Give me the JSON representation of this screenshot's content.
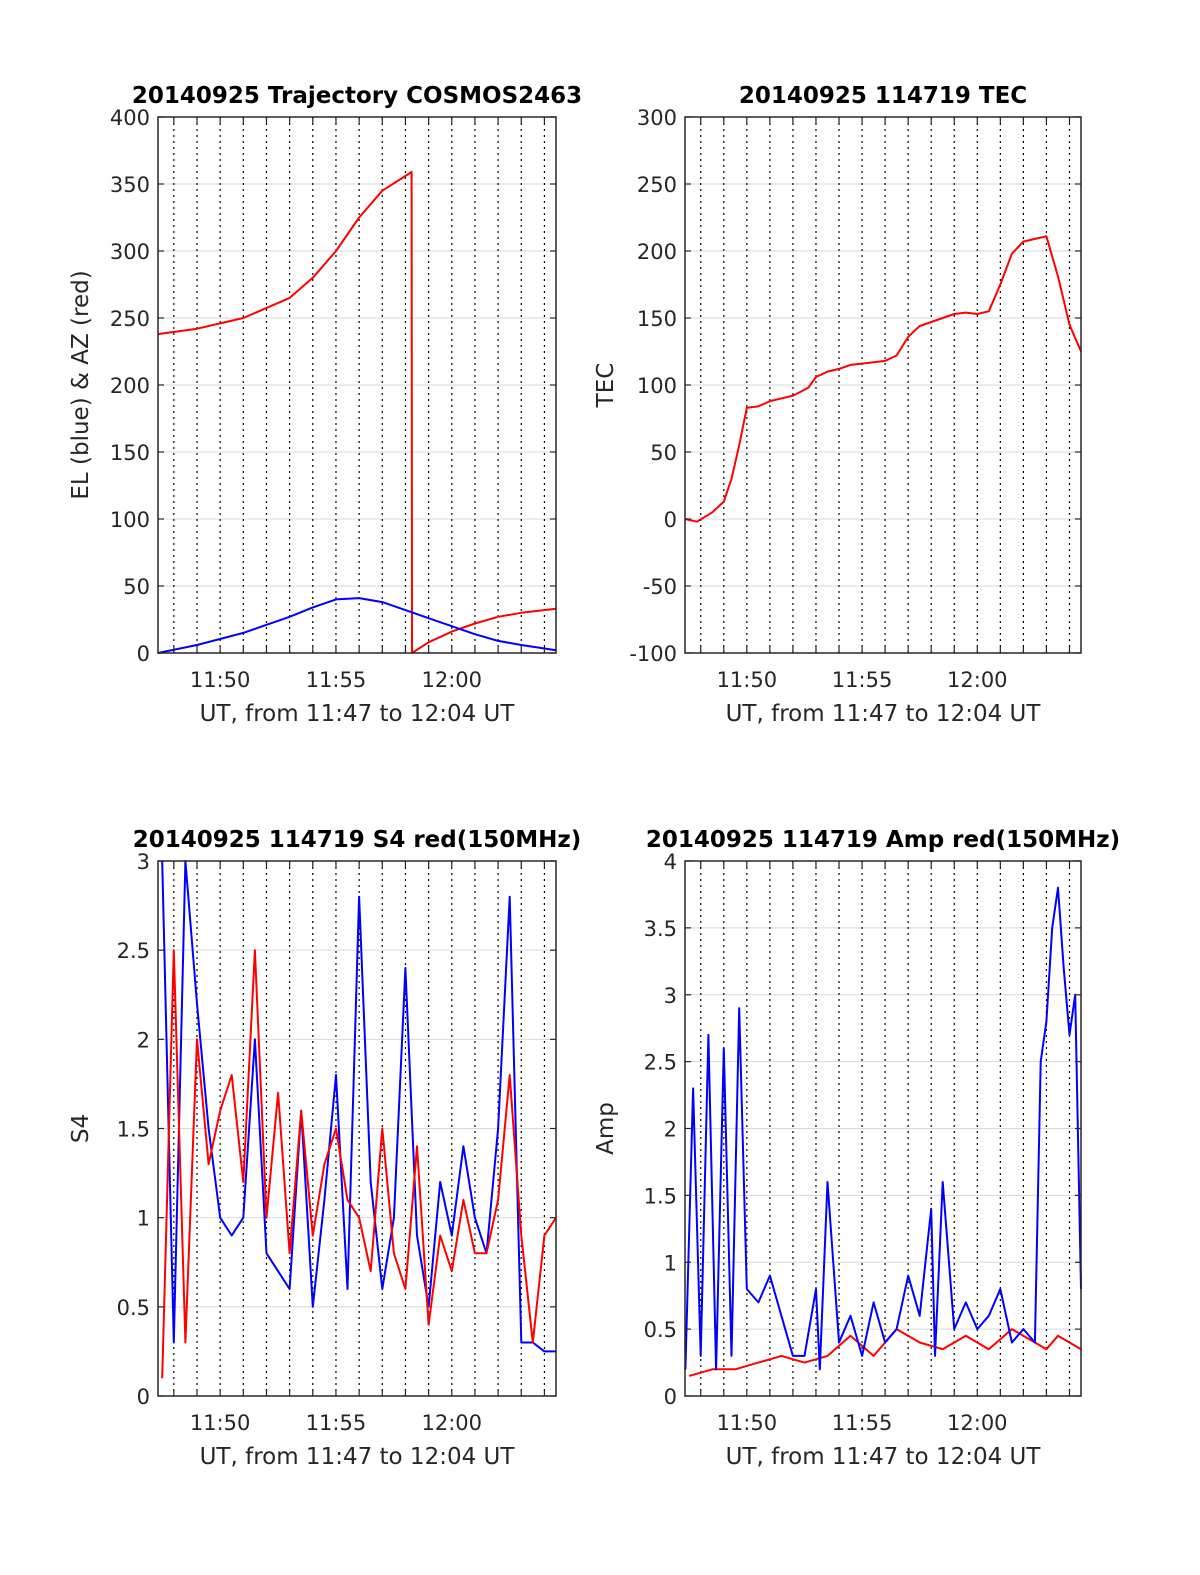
{
  "colors": {
    "red": "#ff0000",
    "blue": "#0000ff",
    "grid": "#d9d9d9",
    "axis": "#262626"
  },
  "chart_data": [
    {
      "id": "trajectory",
      "type": "line",
      "title": "20140925 Trajectory COSMOS2463",
      "xlabel": "UT, from 11:47 to 12:04 UT",
      "ylabel": "EL (blue) & AZ (red)",
      "xlim": [
        "11:47:19",
        "12:04:30"
      ],
      "ylim": [
        0,
        400
      ],
      "yticks": [
        0,
        50,
        100,
        150,
        200,
        250,
        300,
        350,
        400
      ],
      "xticks": [
        "11:50",
        "11:55",
        "12:00"
      ],
      "grid": "on",
      "series": [
        {
          "color": "red",
          "x": [
            "11:47:19",
            "11:49:00",
            "11:51:00",
            "11:53:00",
            "11:54:00",
            "11:55:00",
            "11:56:00",
            "11:57:00",
            "11:58:00",
            "11:58:16",
            "11:58:17",
            "11:59:00",
            "12:00:00",
            "12:01:00",
            "12:02:00",
            "12:03:00",
            "12:04:30"
          ],
          "y": [
            238,
            242,
            250,
            265,
            280,
            300,
            325,
            345,
            356,
            359,
            0,
            8,
            16,
            22,
            27,
            30,
            33
          ]
        },
        {
          "color": "blue",
          "x": [
            "11:47:19",
            "11:49:00",
            "11:51:00",
            "11:53:00",
            "11:54:00",
            "11:55:00",
            "11:56:00",
            "11:57:00",
            "11:58:00",
            "11:59:00",
            "12:00:00",
            "12:01:00",
            "12:02:00",
            "12:03:00",
            "12:04:30"
          ],
          "y": [
            0,
            6,
            15,
            27,
            34,
            40,
            41,
            38,
            32,
            26,
            20,
            14,
            9,
            6,
            2
          ]
        }
      ]
    },
    {
      "id": "tec",
      "type": "line",
      "title": "20140925 114719 TEC",
      "xlabel": "UT, from 11:47 to 12:04 UT",
      "ylabel": "TEC",
      "xlim": [
        "11:47:19",
        "12:04:30"
      ],
      "ylim": [
        -100,
        300
      ],
      "yticks": [
        -100,
        -50,
        0,
        50,
        100,
        150,
        200,
        250,
        300
      ],
      "xticks": [
        "11:50",
        "11:55",
        "12:00"
      ],
      "grid": "on",
      "series": [
        {
          "color": "red",
          "x": [
            "11:47:19",
            "11:47:50",
            "11:48:30",
            "11:49:00",
            "11:49:20",
            "11:49:40",
            "11:50:00",
            "11:50:30",
            "11:51:00",
            "11:52:00",
            "11:52:40",
            "11:53:00",
            "11:53:30",
            "11:54:00",
            "11:54:30",
            "11:55:00",
            "11:55:30",
            "11:56:00",
            "11:56:30",
            "11:57:00",
            "11:57:30",
            "11:58:00",
            "11:59:00",
            "11:59:30",
            "12:00:00",
            "12:00:30",
            "12:01:00",
            "12:01:30",
            "12:02:00",
            "12:02:30",
            "12:03:00",
            "12:03:30",
            "12:04:00",
            "12:04:30"
          ],
          "y": [
            0,
            -2,
            5,
            13,
            30,
            55,
            83,
            84,
            88,
            92,
            98,
            106,
            110,
            112,
            115,
            116,
            117,
            118,
            122,
            136,
            144,
            147,
            153,
            154,
            153,
            155,
            175,
            198,
            207,
            209,
            211,
            181,
            145,
            125
          ]
        }
      ]
    },
    {
      "id": "s4",
      "type": "line",
      "title": "20140925 114719 S4 red(150MHz)",
      "xlabel": "UT, from 11:47 to 12:04 UT",
      "ylabel": "S4",
      "xlim": [
        "11:47:19",
        "12:04:30"
      ],
      "ylim": [
        0,
        3
      ],
      "yticks": [
        0,
        0.5,
        1,
        1.5,
        2,
        2.5,
        3
      ],
      "xticks": [
        "11:50",
        "11:55",
        "12:00"
      ],
      "grid": "on",
      "series": [
        {
          "color": "blue",
          "x": [
            "11:47:30",
            "11:48:00",
            "11:48:30",
            "11:49:00",
            "11:49:30",
            "11:50:00",
            "11:50:30",
            "11:51:00",
            "11:51:30",
            "11:52:00",
            "11:52:30",
            "11:53:00",
            "11:53:30",
            "11:54:00",
            "11:54:30",
            "11:55:00",
            "11:55:30",
            "11:56:00",
            "11:56:30",
            "11:57:00",
            "11:57:30",
            "11:58:00",
            "11:58:30",
            "11:59:00",
            "11:59:30",
            "12:00:00",
            "12:00:30",
            "12:01:00",
            "12:01:30",
            "12:02:00",
            "12:02:30",
            "12:03:00",
            "12:03:30",
            "12:04:00",
            "12:04:30"
          ],
          "y": [
            3,
            0.3,
            3,
            2.2,
            1.5,
            1.0,
            0.9,
            1.0,
            2.0,
            0.8,
            0.7,
            0.6,
            1.6,
            0.5,
            1.1,
            1.8,
            0.6,
            2.8,
            1.2,
            0.6,
            1.0,
            2.4,
            0.9,
            0.5,
            1.2,
            0.9,
            1.4,
            1.0,
            0.8,
            1.5,
            2.8,
            0.3,
            0.3,
            0.25,
            0.25
          ]
        },
        {
          "color": "red",
          "x": [
            "11:47:30",
            "11:48:00",
            "11:48:30",
            "11:49:00",
            "11:49:30",
            "11:50:00",
            "11:50:30",
            "11:51:00",
            "11:51:30",
            "11:52:00",
            "11:52:30",
            "11:53:00",
            "11:53:30",
            "11:54:00",
            "11:54:30",
            "11:55:00",
            "11:55:30",
            "11:56:00",
            "11:56:30",
            "11:57:00",
            "11:57:30",
            "11:58:00",
            "11:58:30",
            "11:59:00",
            "11:59:30",
            "12:00:00",
            "12:00:30",
            "12:01:00",
            "12:01:30",
            "12:02:00",
            "12:02:30",
            "12:03:00",
            "12:03:30",
            "12:04:00",
            "12:04:30"
          ],
          "y": [
            0.1,
            2.5,
            0.3,
            2.0,
            1.3,
            1.6,
            1.8,
            1.2,
            2.5,
            1.0,
            1.7,
            0.8,
            1.6,
            0.9,
            1.3,
            1.5,
            1.1,
            1.0,
            0.7,
            1.5,
            0.8,
            0.6,
            1.4,
            0.4,
            0.9,
            0.7,
            1.1,
            0.8,
            0.8,
            1.1,
            1.8,
            0.9,
            0.3,
            0.9,
            1.0
          ]
        }
      ]
    },
    {
      "id": "amp",
      "type": "line",
      "title": "20140925 114719 Amp red(150MHz)",
      "xlabel": "UT, from 11:47 to 12:04 UT",
      "ylabel": "Amp",
      "xlim": [
        "11:47:19",
        "12:04:30"
      ],
      "ylim": [
        0,
        4
      ],
      "yticks": [
        0,
        0.5,
        1,
        1.5,
        2,
        2.5,
        3,
        3.5,
        4
      ],
      "xticks": [
        "11:50",
        "11:55",
        "12:00"
      ],
      "grid": "on",
      "series": [
        {
          "color": "red",
          "x": [
            "11:47:30",
            "11:48:30",
            "11:49:30",
            "11:50:30",
            "11:51:30",
            "11:52:30",
            "11:53:30",
            "11:54:30",
            "11:55:30",
            "11:56:30",
            "11:57:30",
            "11:58:30",
            "11:59:30",
            "12:00:30",
            "12:01:30",
            "12:02:30",
            "12:03:00",
            "12:03:30",
            "12:04:00",
            "12:04:30"
          ],
          "y": [
            0.15,
            0.2,
            0.2,
            0.25,
            0.3,
            0.25,
            0.3,
            0.45,
            0.3,
            0.5,
            0.4,
            0.35,
            0.45,
            0.35,
            0.5,
            0.4,
            0.35,
            0.45,
            0.4,
            0.35
          ]
        },
        {
          "color": "blue",
          "x": [
            "11:47:20",
            "11:47:40",
            "11:48:00",
            "11:48:20",
            "11:48:40",
            "11:49:00",
            "11:49:20",
            "11:49:40",
            "11:50:00",
            "11:50:30",
            "11:51:00",
            "11:51:30",
            "11:52:00",
            "11:52:30",
            "11:53:00",
            "11:53:10",
            "11:53:30",
            "11:54:00",
            "11:54:30",
            "11:55:00",
            "11:55:30",
            "11:56:00",
            "11:56:30",
            "11:57:00",
            "11:57:30",
            "11:58:00",
            "11:58:10",
            "11:58:30",
            "11:59:00",
            "11:59:30",
            "12:00:00",
            "12:00:30",
            "12:01:00",
            "12:01:30",
            "12:02:00",
            "12:02:30",
            "12:02:45",
            "12:03:00",
            "12:03:15",
            "12:03:30",
            "12:03:45",
            "12:04:00",
            "12:04:15",
            "12:04:30"
          ],
          "y": [
            0.2,
            2.3,
            0.3,
            2.7,
            0.2,
            2.6,
            0.3,
            2.9,
            0.8,
            0.7,
            0.9,
            0.6,
            0.3,
            0.3,
            0.8,
            0.2,
            1.6,
            0.4,
            0.6,
            0.3,
            0.7,
            0.4,
            0.5,
            0.9,
            0.6,
            1.4,
            0.3,
            1.6,
            0.5,
            0.7,
            0.5,
            0.6,
            0.8,
            0.4,
            0.5,
            0.4,
            2.5,
            2.8,
            3.5,
            3.8,
            3.2,
            2.7,
            3.0,
            0.8
          ]
        }
      ]
    }
  ]
}
